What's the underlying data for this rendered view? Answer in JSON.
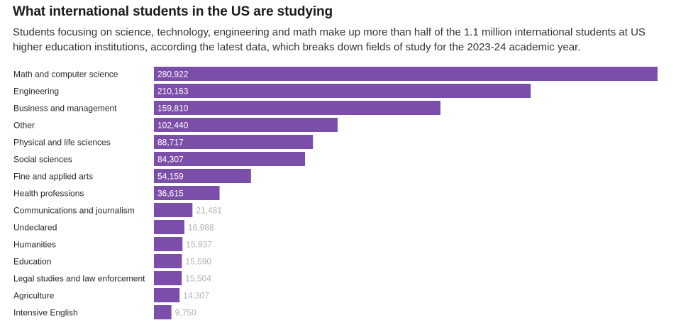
{
  "header": {
    "title": "What international students in the US are studying",
    "subtitle": "Students focusing on science, technology, engineering and math make up more than half of the 1.1 million international students at US higher education institutions, according the latest data, which breaks down fields of study for the 2023-24 academic year."
  },
  "colors": {
    "bar": "#7b4ea9",
    "label_inside": "#ffffff",
    "label_outside": "#b3b3b3"
  },
  "chart_data": {
    "type": "bar",
    "orientation": "horizontal",
    "title": "What international students in the US are studying",
    "categories": [
      "Math and computer science",
      "Engineering",
      "Business and management",
      "Other",
      "Physical and life sciences",
      "Social sciences",
      "Fine and applied arts",
      "Health professions",
      "Communications and journalism",
      "Undeclared",
      "Humanities",
      "Education",
      "Legal studies and law enforcement",
      "Agriculture",
      "Intensive English"
    ],
    "values": [
      280922,
      210163,
      159810,
      102440,
      88717,
      84307,
      54159,
      36615,
      21481,
      16988,
      15937,
      15590,
      15504,
      14307,
      9750
    ],
    "value_labels": [
      "280,922",
      "210,163",
      "159,810",
      "102,440",
      "88,717",
      "84,307",
      "54,159",
      "36,615",
      "21,481",
      "16,988",
      "15,937",
      "15,590",
      "15,504",
      "14,307",
      "9,750"
    ],
    "xlabel": "",
    "ylabel": "",
    "xlim": [
      0,
      280922
    ]
  }
}
